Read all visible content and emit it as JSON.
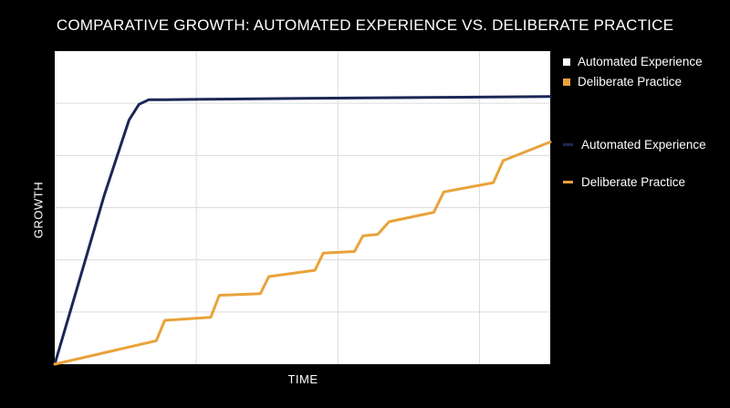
{
  "chart_data": {
    "type": "line",
    "title": "COMPARATIVE GROWTH: AUTOMATED EXPERIENCE VS. DELIBERATE PRACTICE",
    "xlabel": "TIME",
    "ylabel": "GROWTH",
    "xlim": [
      0,
      100
    ],
    "ylim": [
      0,
      100
    ],
    "grid": true,
    "legend_position": "right",
    "series": [
      {
        "name": "Automated Experience",
        "color": "#1b2755",
        "x": [
          0,
          5,
          10,
          15,
          17,
          19,
          22,
          30,
          50,
          75,
          100
        ],
        "y": [
          0,
          27,
          54,
          78,
          83,
          84.5,
          84.5,
          84.6,
          84.9,
          85.2,
          85.5
        ]
      },
      {
        "name": "Deliberate Practice",
        "color": "#e9a23a",
        "x": [
          0,
          20.5,
          22.2,
          31.5,
          33.2,
          41.5,
          43.2,
          52.5,
          54.2,
          60.5,
          62.2,
          65.2,
          67.5,
          76.5,
          78.5,
          88.5,
          90.5,
          100
        ],
        "y": [
          0,
          7.5,
          14,
          15,
          22,
          22.5,
          28,
          30,
          35.5,
          36,
          41,
          41.5,
          45.5,
          48.5,
          55,
          58,
          65,
          71
        ]
      }
    ]
  },
  "legend": {
    "top": [
      {
        "label": "Automated Experience",
        "color": "#ffffff"
      },
      {
        "label": "Deliberate Practice",
        "color": "#e9a23a"
      }
    ],
    "lines": [
      {
        "label": "Automated Experience",
        "color": "#1b2755"
      },
      {
        "label": "Deliberate Practice",
        "color": "#e9a23a"
      }
    ]
  }
}
